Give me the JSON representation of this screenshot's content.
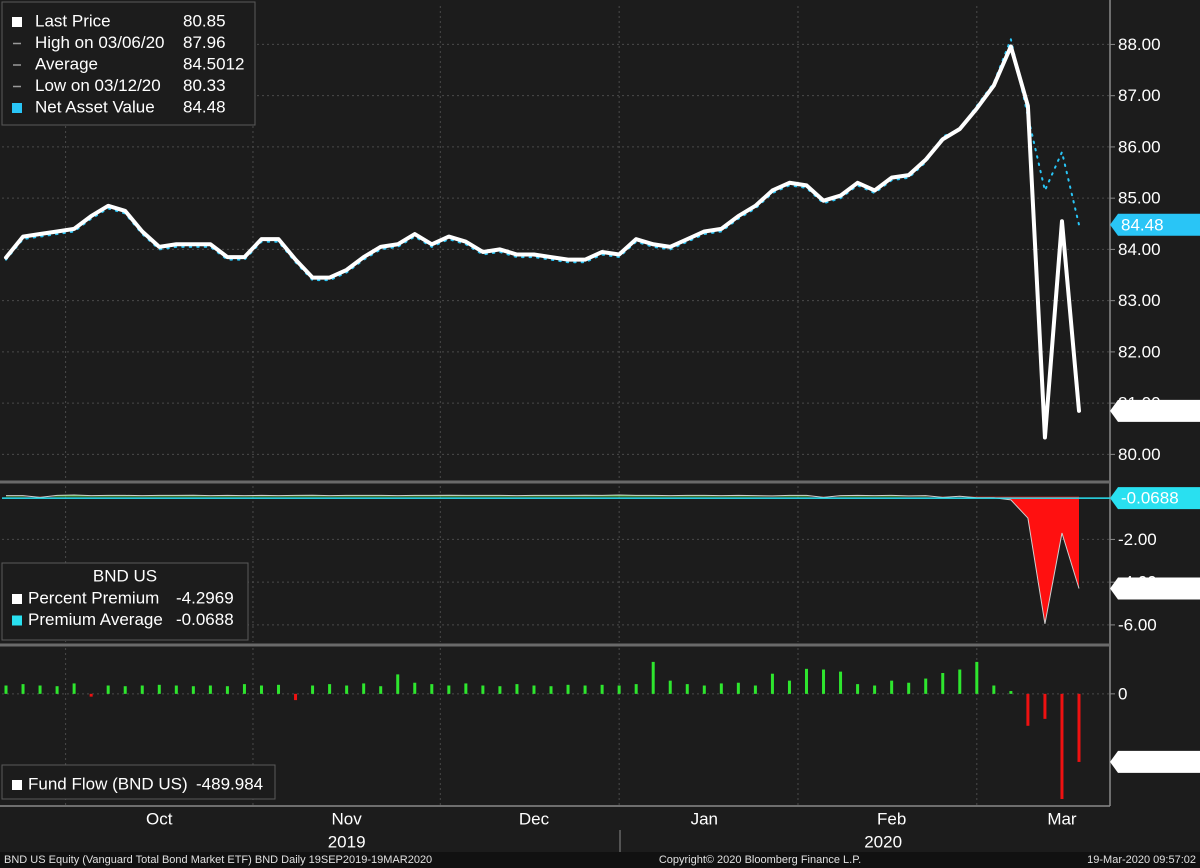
{
  "chart_data": [
    {
      "type": "line",
      "legend": [
        {
          "label": "Last Price",
          "value": 80.85,
          "color": "#ffffff"
        },
        {
          "label": "High on 03/06/20",
          "value": 87.96
        },
        {
          "label": "Average",
          "value": 84.5012
        },
        {
          "label": "Low on 03/12/20",
          "value": 80.33
        },
        {
          "label": "Net Asset Value",
          "value": 84.48,
          "color": "#29c5f6"
        }
      ],
      "series": [
        {
          "color": "#29c5f6",
          "style": "dotted",
          "values": [
            83.8,
            84.2,
            84.25,
            84.3,
            84.35,
            84.6,
            84.8,
            84.7,
            84.3,
            84.0,
            84.05,
            84.05,
            84.05,
            83.8,
            83.8,
            84.15,
            84.15,
            83.75,
            83.4,
            83.4,
            83.55,
            83.8,
            84.0,
            84.05,
            84.25,
            84.05,
            84.2,
            84.1,
            83.9,
            83.95,
            83.85,
            83.85,
            83.8,
            83.75,
            83.75,
            83.9,
            83.85,
            84.15,
            84.05,
            84.0,
            84.15,
            84.3,
            84.35,
            84.6,
            84.8,
            85.1,
            85.25,
            85.2,
            84.9,
            85.0,
            85.25,
            85.1,
            85.35,
            85.4,
            85.7,
            86.2,
            86.35,
            86.8,
            87.25,
            88.1,
            86.6,
            85.15,
            85.9,
            84.48
          ]
        },
        {
          "color": "#ffffff",
          "style": "solid",
          "values": [
            83.84,
            84.25,
            84.3,
            84.35,
            84.4,
            84.65,
            84.85,
            84.75,
            84.35,
            84.05,
            84.1,
            84.1,
            84.1,
            83.85,
            83.85,
            84.2,
            84.2,
            83.8,
            83.45,
            83.45,
            83.6,
            83.85,
            84.05,
            84.1,
            84.3,
            84.1,
            84.25,
            84.15,
            83.95,
            84.0,
            83.9,
            83.9,
            83.85,
            83.8,
            83.8,
            83.95,
            83.9,
            84.2,
            84.1,
            84.05,
            84.2,
            84.35,
            84.4,
            84.65,
            84.85,
            85.15,
            85.3,
            85.25,
            84.95,
            85.05,
            85.3,
            85.15,
            85.4,
            85.45,
            85.75,
            86.15,
            86.35,
            86.75,
            87.2,
            87.96,
            86.8,
            80.33,
            84.55,
            80.85
          ]
        }
      ],
      "ylim": [
        79.5,
        88.75
      ],
      "yticks": [
        {
          "value": 80,
          "label": "80.00"
        },
        {
          "value": 81,
          "label": "81.00"
        },
        {
          "value": 82,
          "label": "82.00"
        },
        {
          "value": 83,
          "label": "83.00"
        },
        {
          "value": 84,
          "label": "84.00"
        },
        {
          "value": 85,
          "label": "85.00"
        },
        {
          "value": 86,
          "label": "86.00"
        },
        {
          "value": 87,
          "label": "87.00"
        },
        {
          "value": 88,
          "label": "88.00"
        }
      ],
      "grid": true
    },
    {
      "type": "area",
      "legend_title": "BND US",
      "legend": [
        {
          "label": "Percent Premium",
          "value": -4.2969,
          "color": "#ffffff"
        },
        {
          "label": "Premium Average",
          "value": -0.0688,
          "color": "#29e0f0"
        }
      ],
      "series": [
        {
          "color": "#cfcfcf",
          "color_positive": "#35c435",
          "color_negative": "#ff1010",
          "values": [
            0.05,
            0.05,
            -0.03,
            0.06,
            0.08,
            0.05,
            0.06,
            0.06,
            0.05,
            0.06,
            0.06,
            0.07,
            0.05,
            0.06,
            0.05,
            0.06,
            0.05,
            0.06,
            0.07,
            0.05,
            0.06,
            0.06,
            0.06,
            0.05,
            0.06,
            0.06,
            0.07,
            0.06,
            0.06,
            0.06,
            0.05,
            0.06,
            0.06,
            0.06,
            0.07,
            0.06,
            0.08,
            0.06,
            0.06,
            0.05,
            0.06,
            0.06,
            0.05,
            0.06,
            0.05,
            0.04,
            0.06,
            0.06,
            -0.03,
            0.05,
            0.06,
            0.05,
            0.06,
            0.04,
            0.05,
            -0.03,
            0.02,
            -0.05,
            -0.05,
            -0.15,
            -1.0,
            -5.95,
            -1.7,
            -4.2969
          ]
        }
      ],
      "average": -0.0688,
      "average_color": "#29e0f0",
      "ylim": [
        -6.8,
        0.5
      ],
      "yticks": [
        {
          "value": -2,
          "label": "-2.00"
        },
        {
          "value": -4,
          "label": "-4.00"
        },
        {
          "value": -6,
          "label": "-6.00"
        }
      ],
      "grid": true
    },
    {
      "type": "bar",
      "legend": [
        {
          "label": "Fund Flow (BND US)",
          "value": -489.984,
          "color": "#ffffff"
        }
      ],
      "categories": [
        null,
        null,
        null,
        null,
        null,
        null,
        null,
        null,
        null,
        "Oct",
        null,
        null,
        null,
        null,
        null,
        null,
        null,
        null,
        null,
        null,
        "Nov",
        null,
        null,
        null,
        null,
        null,
        null,
        null,
        null,
        null,
        null,
        "Dec",
        null,
        null,
        null,
        null,
        null,
        null,
        null,
        null,
        null,
        "Jan",
        null,
        null,
        null,
        null,
        null,
        null,
        null,
        null,
        null,
        null,
        "Feb",
        null,
        null,
        null,
        null,
        null,
        null,
        null,
        null,
        null,
        "Mar",
        null
      ],
      "x_groups": [
        {
          "label": "2019",
          "from": "Oct",
          "to": "Dec"
        },
        {
          "label": "2020",
          "from": "Jan",
          "to": "Mar"
        }
      ],
      "color_positive": "#2ee62e",
      "color_negative": "#ee1111",
      "values": [
        60,
        70,
        60,
        55,
        75,
        -20,
        60,
        55,
        60,
        65,
        60,
        55,
        60,
        55,
        70,
        60,
        65,
        -45,
        60,
        70,
        60,
        75,
        55,
        140,
        80,
        70,
        60,
        75,
        60,
        55,
        70,
        60,
        55,
        65,
        60,
        65,
        60,
        70,
        230,
        95,
        70,
        60,
        75,
        80,
        60,
        145,
        95,
        180,
        175,
        160,
        70,
        60,
        95,
        80,
        110,
        150,
        175,
        230,
        60,
        20,
        -230,
        -180,
        -757,
        -489.984
      ],
      "ylim": [
        -800,
        330
      ],
      "yticks": [
        0
      ],
      "grid": true
    }
  ],
  "footer": {
    "left": "BND US Equity (Vanguard Total Bond Market ETF) BND  Daily 19SEP2019-19MAR2020",
    "center": "Copyright© 2020 Bloomberg Finance L.P.",
    "right": "19-Mar-2020 09:57:02"
  }
}
